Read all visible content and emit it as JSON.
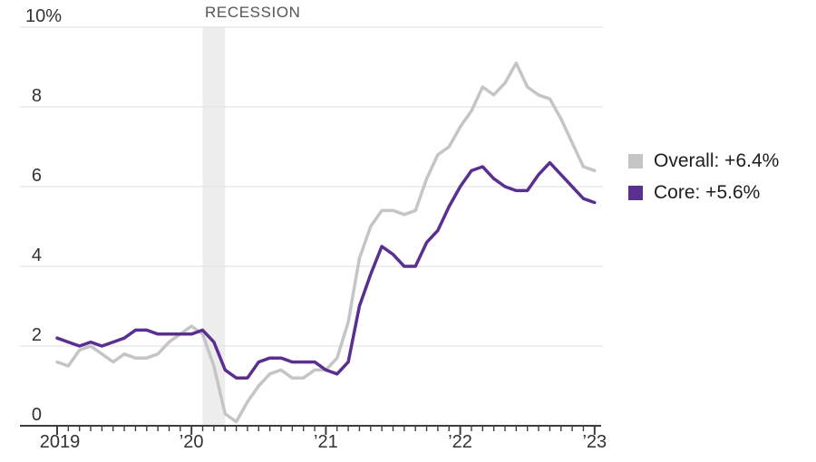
{
  "chart_data": {
    "type": "line",
    "x_start": "2019-01",
    "x_end": "2023-01",
    "x_unit": "month",
    "x_tick_labels": [
      "2019",
      "’20",
      "’21",
      "’22",
      "’23"
    ],
    "y_ticks": [
      {
        "label": "10%",
        "value": 10
      },
      {
        "label": "8",
        "value": 8
      },
      {
        "label": "6",
        "value": 6
      },
      {
        "label": "4",
        "value": 4
      },
      {
        "label": "2",
        "value": 2
      },
      {
        "label": "0",
        "value": 0
      }
    ],
    "ylim": [
      0,
      10
    ],
    "grid": "horizontal",
    "legend_position": "right",
    "series": [
      {
        "name": "Overall",
        "color": "#c5c4c6",
        "values": [
          1.6,
          1.5,
          1.9,
          2.0,
          1.8,
          1.6,
          1.8,
          1.7,
          1.7,
          1.8,
          2.1,
          2.3,
          2.5,
          2.3,
          1.5,
          0.3,
          0.1,
          0.6,
          1.0,
          1.3,
          1.4,
          1.2,
          1.2,
          1.4,
          1.4,
          1.7,
          2.6,
          4.2,
          5.0,
          5.4,
          5.4,
          5.3,
          5.4,
          6.2,
          6.8,
          7.0,
          7.5,
          7.9,
          8.5,
          8.3,
          8.6,
          9.1,
          8.5,
          8.3,
          8.2,
          7.7,
          7.1,
          6.5,
          6.4
        ]
      },
      {
        "name": "Core",
        "color": "#5a2f90",
        "values": [
          2.2,
          2.1,
          2.0,
          2.1,
          2.0,
          2.1,
          2.2,
          2.4,
          2.4,
          2.3,
          2.3,
          2.3,
          2.3,
          2.4,
          2.1,
          1.4,
          1.2,
          1.2,
          1.6,
          1.7,
          1.7,
          1.6,
          1.6,
          1.6,
          1.4,
          1.3,
          1.6,
          3.0,
          3.8,
          4.5,
          4.3,
          4.0,
          4.0,
          4.6,
          4.9,
          5.5,
          6.0,
          6.4,
          6.5,
          6.2,
          6.0,
          5.9,
          5.9,
          6.3,
          6.6,
          6.3,
          6.0,
          5.7,
          5.6
        ]
      }
    ],
    "annotations": {
      "recession": {
        "label": "RECESSION",
        "start_month_index": 13,
        "end_month_index": 15
      }
    }
  },
  "legend": {
    "items": [
      {
        "label": "Overall: +6.4%",
        "color": "#c5c4c6"
      },
      {
        "label": "Core: +5.6%",
        "color": "#5a2f90"
      }
    ]
  },
  "colors": {
    "gridline": "#e4e4e6",
    "axis": "#3d3d3d",
    "tick_label": "#323232",
    "recession_band": "#ededee"
  }
}
